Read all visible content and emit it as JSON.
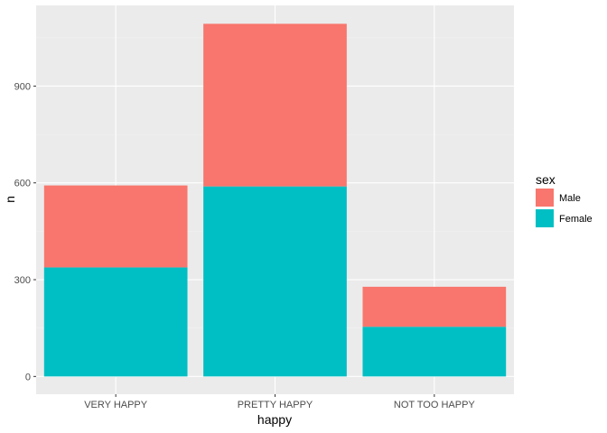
{
  "chart_data": {
    "type": "bar",
    "stacked": true,
    "xlabel": "happy",
    "ylabel": "n",
    "categories": [
      "VERY HAPPY",
      "PRETTY HAPPY",
      "NOT TOO HAPPY"
    ],
    "series": [
      {
        "name": "Male",
        "values": [
          254,
          504,
          124
        ],
        "color": "#F8766D"
      },
      {
        "name": "Female",
        "values": [
          338,
          589,
          154
        ],
        "color": "#00BFC4"
      }
    ],
    "yticks": [
      0,
      300,
      600,
      900
    ],
    "ylim": [
      -55,
      1150
    ],
    "grid": true,
    "legend": {
      "title": "sex",
      "position": "right"
    },
    "colors": {
      "panel": "#EBEBEB",
      "grid_major": "#FFFFFF",
      "grid_minor": "#F2F2F2"
    }
  }
}
